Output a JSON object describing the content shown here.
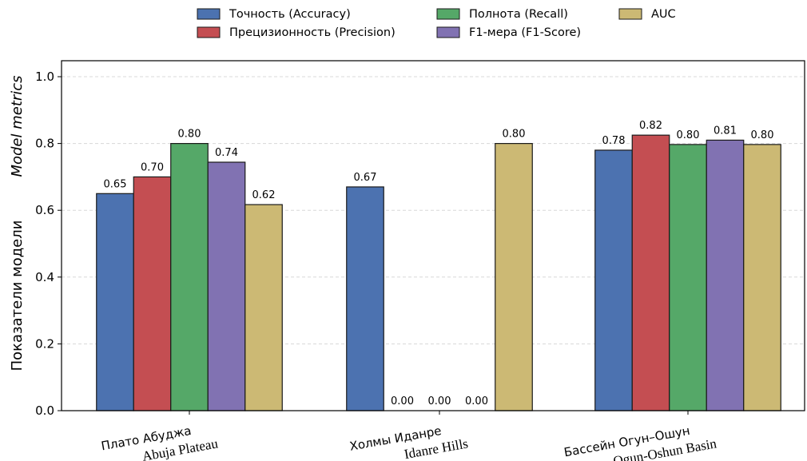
{
  "chart_data": {
    "type": "bar",
    "ylabel": "Показатели модели",
    "ylabel_secondary": "Model metrics",
    "ylim": [
      0,
      1.05
    ],
    "yticks": [
      0.0,
      0.2,
      0.4,
      0.6,
      0.8,
      1.0
    ],
    "grid": true,
    "legend_position": "top-center",
    "categories": [
      {
        "ru": "Плато Абуджа",
        "en": "Abuja Plateau"
      },
      {
        "ru": "Холмы Иданре",
        "en": "Idanre Hills"
      },
      {
        "ru": "Бассейн Огун–Ошун",
        "en": "Ogun-Oshun Basin"
      }
    ],
    "series": [
      {
        "name": "Точность (Accuracy)",
        "color": "#4c72b0",
        "values": [
          0.65,
          0.67,
          0.78
        ],
        "labels": [
          "0.65",
          "0.67",
          "0.78"
        ]
      },
      {
        "name": "Прецизионность (Precision)",
        "color": "#c44e52",
        "values": [
          0.7,
          0.0,
          0.825
        ],
        "labels": [
          "0.70",
          "0.00",
          "0.82"
        ]
      },
      {
        "name": "Полнота (Recall)",
        "color": "#55a868",
        "values": [
          0.8,
          0.0,
          0.797
        ],
        "labels": [
          "0.80",
          "0.00",
          "0.80"
        ]
      },
      {
        "name": "F1-мера (F1-Score)",
        "color": "#8172b2",
        "values": [
          0.744,
          0.0,
          0.81
        ],
        "labels": [
          "0.74",
          "0.00",
          "0.81"
        ]
      },
      {
        "name": "AUC",
        "color": "#ccb974",
        "values": [
          0.617,
          0.8,
          0.797
        ],
        "labels": [
          "0.62",
          "0.80",
          "0.80"
        ]
      }
    ]
  }
}
